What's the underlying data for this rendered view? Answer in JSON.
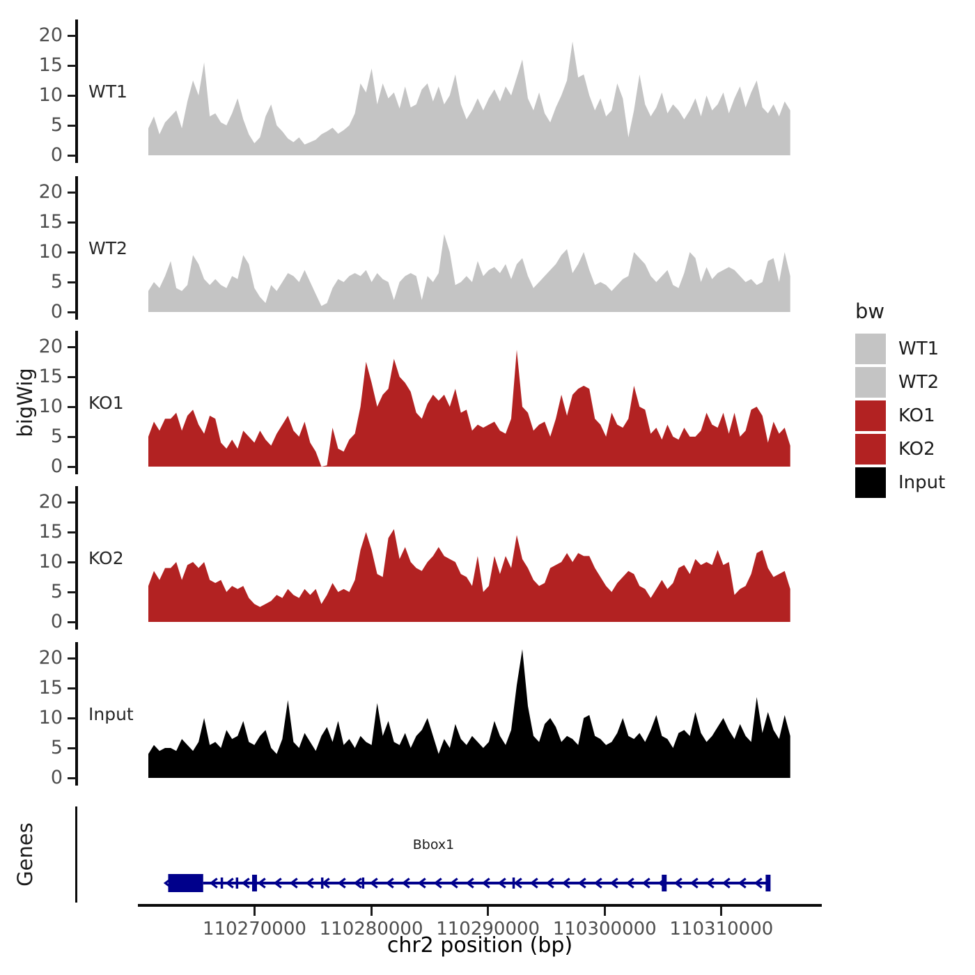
{
  "figure": {
    "y_axis_title_tracks": "bigWig",
    "y_axis_title_genes": "Genes",
    "x_axis": {
      "title": "chr2 position (bp)",
      "ticks_bp": [
        110270000,
        110280000,
        110290000,
        110300000,
        110310000
      ],
      "tick_labels": [
        "110270000",
        "110280000",
        "110290000",
        "110300000",
        "110310000"
      ]
    }
  },
  "legend": {
    "title": "bw",
    "items": [
      {
        "label": "WT1",
        "color": "#c4c4c4"
      },
      {
        "label": "WT2",
        "color": "#c4c4c4"
      },
      {
        "label": "KO1",
        "color": "#b22222"
      },
      {
        "label": "KO2",
        "color": "#b22222"
      },
      {
        "label": "Input",
        "color": "#000000"
      }
    ]
  },
  "chart_data": {
    "type": "area",
    "xlabel": "chr2 position (bp)",
    "ylabel": "bigWig",
    "x_range_bp": [
      110260900,
      110315900
    ],
    "x_axis_range_bp": [
      110260000,
      110318600
    ],
    "y_ticks": [
      0,
      5,
      10,
      15,
      20
    ],
    "y_max": 22.6,
    "grid": false,
    "legend_position": "right",
    "tracks": [
      {
        "label": "WT1",
        "color": "#c4c4c4",
        "values": [
          4.5,
          6.5,
          3.5,
          5.5,
          6.5,
          7.5,
          4.5,
          9,
          12.5,
          10,
          15.5,
          6.5,
          7,
          5.5,
          5,
          7,
          9.5,
          6,
          3.5,
          2,
          3,
          6.5,
          8.5,
          5,
          4,
          2.8,
          2.2,
          3,
          1.8,
          2.2,
          2.6,
          3.5,
          4,
          4.6,
          3.6,
          4.2,
          5,
          7,
          12,
          10.5,
          14.5,
          8.5,
          12,
          9.5,
          10.5,
          7.8,
          11.5,
          8,
          8.5,
          11,
          12,
          9,
          11.5,
          8.5,
          10,
          13.5,
          8.5,
          6,
          7.5,
          9.5,
          7.5,
          9.5,
          11,
          9,
          11.5,
          10,
          13,
          16,
          9.5,
          7.5,
          10.5,
          7,
          5.5,
          8,
          10,
          12.5,
          19,
          13,
          13.5,
          10,
          7.5,
          9.5,
          6.5,
          7.5,
          12,
          9.5,
          3,
          7.5,
          13.5,
          8.5,
          6.5,
          8,
          10.5,
          7,
          8.5,
          7.5,
          6,
          7.5,
          9.5,
          6.5,
          10,
          7.5,
          8.5,
          10.5,
          7,
          9.5,
          11.5,
          8,
          10.5,
          12.5,
          8,
          7,
          8.5,
          6.5,
          9,
          7.5
        ]
      },
      {
        "label": "WT2",
        "color": "#c4c4c4",
        "values": [
          3.5,
          5,
          4,
          6,
          8.5,
          4,
          3.5,
          4.5,
          9.5,
          8,
          5.5,
          4.5,
          5.5,
          4.5,
          4,
          6,
          5.5,
          9.5,
          8,
          4,
          2.5,
          1.5,
          4.5,
          3.5,
          5,
          6.5,
          6,
          5,
          7,
          5,
          3,
          1,
          1.5,
          4,
          5.5,
          5,
          6,
          6.5,
          6,
          7,
          5,
          6.5,
          5.5,
          5,
          2,
          5,
          6,
          6.5,
          6,
          2,
          6,
          5,
          6.5,
          13,
          10,
          4.5,
          5,
          6,
          5,
          8.5,
          6,
          7,
          7.5,
          6.5,
          8,
          5.5,
          8,
          9,
          6,
          4,
          5,
          6,
          7,
          8,
          9.5,
          10.5,
          6.5,
          8,
          10,
          7,
          4.5,
          5,
          4.5,
          3.5,
          4.5,
          5.5,
          6,
          10,
          9,
          8,
          6,
          5,
          6,
          7,
          4.5,
          4,
          6.5,
          10,
          9,
          5,
          7.5,
          5.5,
          6.5,
          7,
          7.5,
          7,
          6,
          5,
          5.5,
          4.5,
          5,
          8.5,
          9,
          5,
          10,
          6
        ]
      },
      {
        "label": "KO1",
        "color": "#b22222",
        "values": [
          5,
          7.5,
          6,
          8,
          8,
          9,
          6,
          8.5,
          9.5,
          7,
          5.5,
          8.5,
          8,
          4,
          3,
          4.5,
          3,
          6,
          5,
          4,
          6,
          4.5,
          3.5,
          5.5,
          7,
          8.5,
          6,
          5,
          7.5,
          4,
          2.5,
          0,
          0.2,
          6.5,
          3,
          2.5,
          4.5,
          5.5,
          10,
          17.5,
          14,
          10,
          12,
          13,
          18,
          15,
          14,
          12.5,
          9,
          8,
          10.5,
          12,
          11,
          12,
          10,
          13,
          9,
          9.5,
          6,
          7,
          6.5,
          7,
          7.5,
          6,
          5.5,
          8,
          19.5,
          10,
          9,
          6,
          7,
          7.5,
          5,
          8,
          12,
          8.5,
          12,
          13,
          13.5,
          13,
          8,
          7,
          5,
          9,
          7,
          6.5,
          8,
          13.5,
          10,
          9.5,
          5.5,
          6.5,
          4.5,
          7,
          5,
          4.5,
          6.5,
          5,
          5,
          6,
          9,
          7,
          6.5,
          9,
          5.5,
          9,
          5,
          6,
          9.5,
          10,
          8.5,
          4,
          7.5,
          5.5,
          6.5,
          3.5
        ]
      },
      {
        "label": "KO2",
        "color": "#b22222",
        "values": [
          6,
          8.5,
          7,
          9,
          9,
          10,
          7,
          9.5,
          10,
          9,
          10,
          7,
          6.5,
          7,
          5,
          6,
          5.5,
          6,
          4,
          3,
          2.5,
          3,
          3.5,
          4.5,
          4,
          5.5,
          4.5,
          4,
          5.5,
          4.5,
          5.5,
          3,
          4.5,
          6.5,
          5,
          5.5,
          5,
          7,
          12,
          15,
          12,
          8,
          7.5,
          14,
          15.5,
          10.5,
          12.5,
          10,
          9,
          8.5,
          10,
          11,
          12.5,
          11,
          10.5,
          10,
          8,
          7.5,
          6,
          11,
          5,
          6,
          11,
          8,
          11,
          9,
          14.5,
          10.5,
          9,
          7,
          6,
          6.5,
          9,
          9.5,
          10,
          11.5,
          10,
          11.5,
          11,
          11,
          9,
          7.5,
          6,
          5,
          6.5,
          7.5,
          8.5,
          8,
          6,
          5.5,
          4,
          5.5,
          7,
          5.5,
          6.5,
          9,
          9.5,
          8,
          10.5,
          9.5,
          10,
          9.5,
          12,
          9.5,
          10,
          4.5,
          5.5,
          6,
          8,
          11.5,
          12,
          9,
          7.5,
          8,
          8.5,
          5.5
        ]
      },
      {
        "label": "Input",
        "color": "#000000",
        "values": [
          4,
          5.5,
          4.5,
          5,
          5,
          4.5,
          6.5,
          5.5,
          4.5,
          6,
          10,
          5.5,
          6,
          5,
          8,
          6.5,
          7,
          9.5,
          6,
          5.5,
          7,
          8,
          5,
          4,
          6.5,
          13,
          6,
          5,
          7.5,
          6,
          4.5,
          7,
          8.5,
          6,
          9.5,
          5.5,
          6.5,
          5,
          7,
          6,
          5.5,
          12.5,
          7,
          9.5,
          6,
          5.5,
          7.5,
          5,
          7,
          8,
          10,
          7,
          4,
          6.5,
          5,
          9,
          6.5,
          5.5,
          7,
          6,
          5,
          6,
          9.5,
          7,
          5.5,
          8,
          15.5,
          21.5,
          12,
          7,
          6,
          9,
          10,
          8.5,
          6,
          7,
          6.5,
          5.5,
          10,
          10.5,
          7,
          6.5,
          5.5,
          6,
          7.5,
          10,
          7,
          6.5,
          7.5,
          6,
          8,
          10.5,
          7,
          6.5,
          5,
          7.5,
          8,
          7,
          11,
          7.5,
          6,
          7,
          8.5,
          10,
          8,
          6.5,
          9,
          7,
          6,
          13.5,
          7.5,
          11,
          8,
          6.5,
          10.5,
          7
        ]
      }
    ],
    "genes_track": {
      "axis_label": "Genes",
      "gene": {
        "name": "Bbox1",
        "strand": "-",
        "start_bp": 110262600,
        "end_bp": 110314000,
        "utr_box_bp": [
          110262600,
          110265600
        ],
        "exon_marks": [
          {
            "bp": 110267200,
            "emphasis": false
          },
          {
            "bp": 110268500,
            "emphasis": false
          },
          {
            "bp": 110270000,
            "emphasis": true
          },
          {
            "bp": 110275800,
            "emphasis": false
          },
          {
            "bp": 110279300,
            "emphasis": false
          },
          {
            "bp": 110292200,
            "emphasis": false
          },
          {
            "bp": 110305100,
            "emphasis": true
          },
          {
            "bp": 110314000,
            "emphasis": true
          }
        ],
        "color": "#00008b"
      }
    }
  }
}
